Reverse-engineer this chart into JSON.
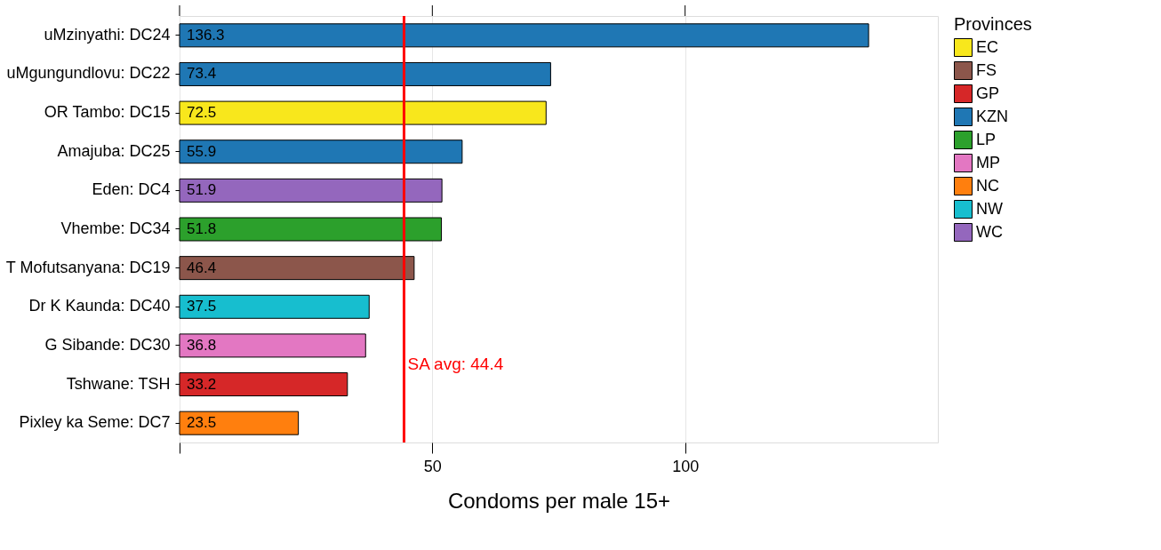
{
  "chart_data": {
    "type": "bar",
    "orientation": "horizontal",
    "stacked": true,
    "xlabel": "Condoms per male 15+",
    "legend_title": "Provinces",
    "legend": "right",
    "grid": "x",
    "data_labels": true,
    "categories": [
      "uMzinyathi: DC24",
      "uMgungundlovu: DC22",
      "OR Tambo: DC15",
      "Amajuba: DC25",
      "Eden: DC4",
      "Vhembe: DC34",
      "T Mofutsanyana: DC19",
      "Dr K Kaunda: DC40",
      "G Sibande: DC30",
      "Tshwane: TSH",
      "Pixley ka Seme: DC7"
    ],
    "xlim": [
      0,
      150
    ],
    "xticks": [
      {
        "value": 0,
        "label": null
      },
      50,
      100
    ],
    "series": [
      {
        "name": "EC",
        "color": "#f8e71c",
        "values": [
          null,
          null,
          72.5,
          null,
          null,
          null,
          null,
          null,
          null,
          null,
          null
        ]
      },
      {
        "name": "FS",
        "color": "#8c564b",
        "values": [
          null,
          null,
          null,
          null,
          null,
          null,
          46.4,
          null,
          null,
          null,
          null
        ]
      },
      {
        "name": "GP",
        "color": "#d62728",
        "values": [
          null,
          null,
          null,
          null,
          null,
          null,
          null,
          null,
          null,
          33.2,
          null
        ]
      },
      {
        "name": "KZN",
        "color": "#1f77b4",
        "values": [
          136.3,
          73.4,
          null,
          55.9,
          null,
          null,
          null,
          null,
          null,
          null,
          null
        ]
      },
      {
        "name": "LP",
        "color": "#2ca02c",
        "values": [
          null,
          null,
          null,
          null,
          null,
          51.8,
          null,
          null,
          null,
          null,
          null
        ]
      },
      {
        "name": "MP",
        "color": "#e377c2",
        "values": [
          null,
          null,
          null,
          null,
          null,
          null,
          null,
          null,
          36.8,
          null,
          null
        ]
      },
      {
        "name": "NC",
        "color": "#ff7f0e",
        "values": [
          null,
          null,
          null,
          null,
          null,
          null,
          null,
          null,
          null,
          null,
          23.5
        ]
      },
      {
        "name": "NW",
        "color": "#17becf",
        "values": [
          null,
          null,
          null,
          null,
          null,
          null,
          null,
          37.5,
          null,
          null,
          null
        ]
      },
      {
        "name": "WC",
        "color": "#9467bd",
        "values": [
          null,
          null,
          null,
          null,
          51.9,
          null,
          null,
          null,
          null,
          null,
          null
        ]
      }
    ],
    "ref_lines": [
      {
        "axis": "x",
        "value": 44.4,
        "label": "SA avg: 44.4",
        "color": "#ff0000"
      }
    ]
  }
}
